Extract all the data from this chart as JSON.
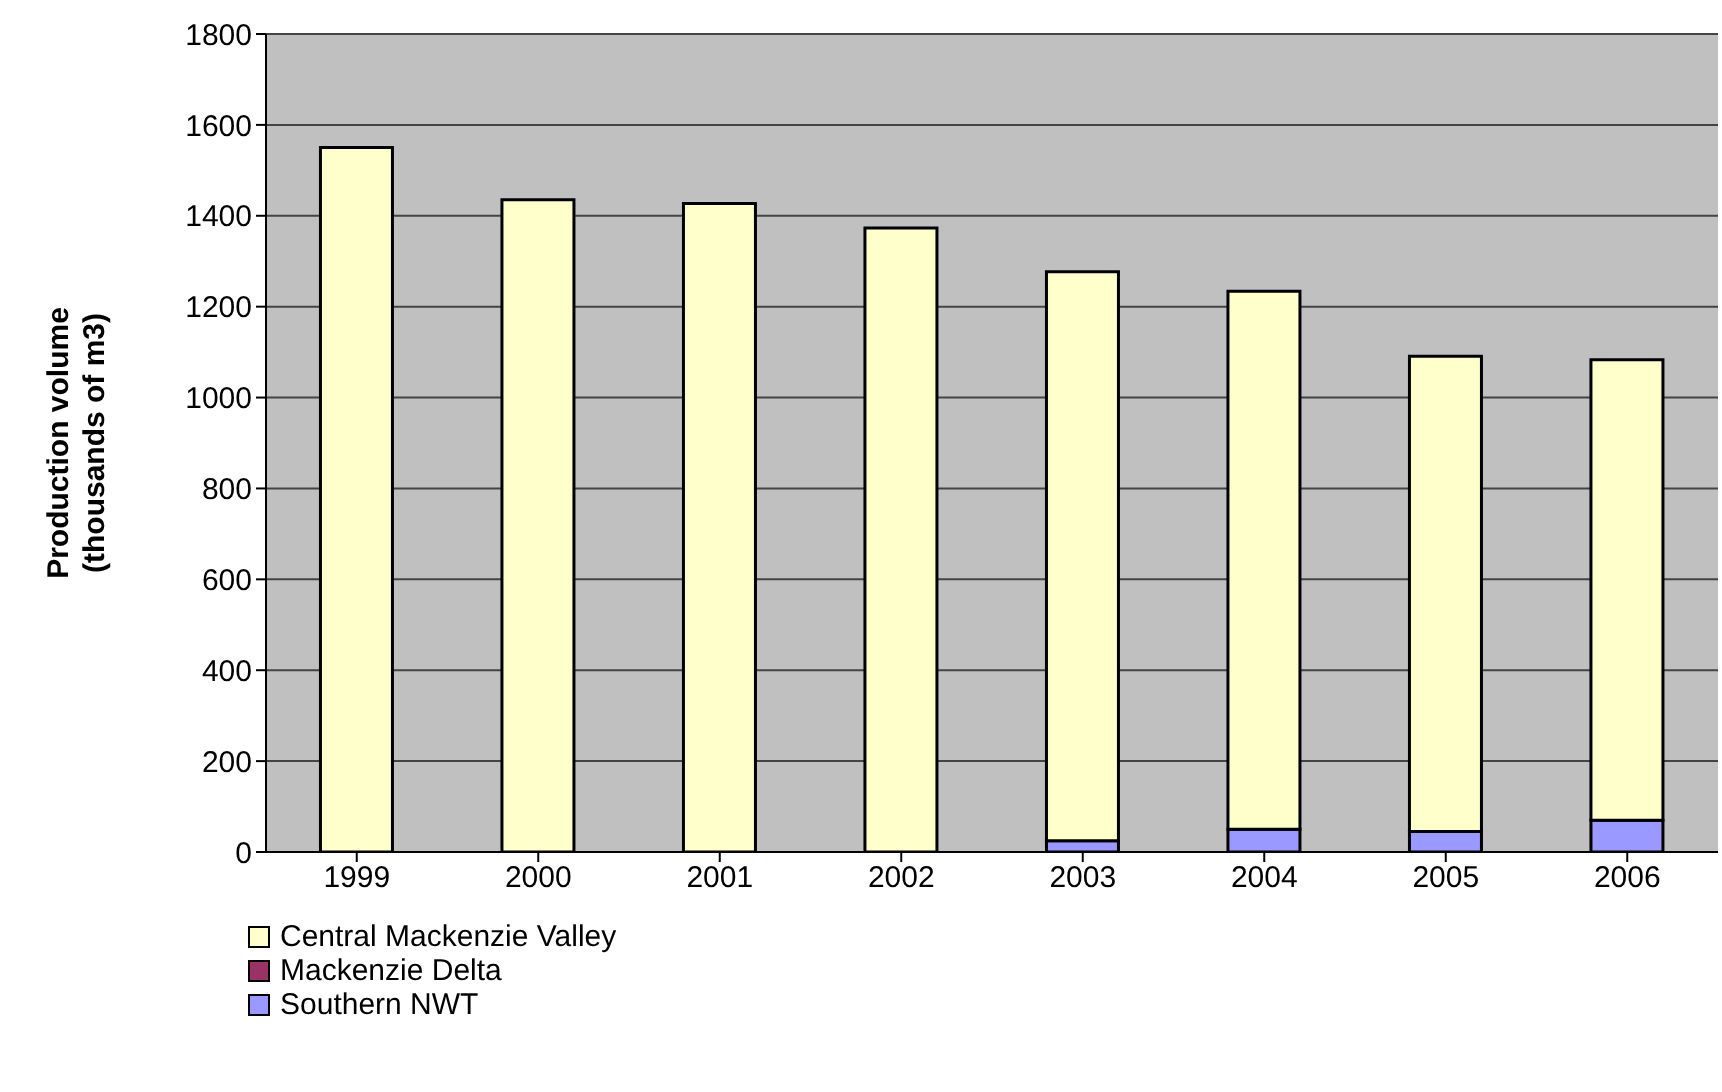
{
  "chart_data": {
    "type": "bar",
    "stacked": true,
    "ylabel": "Production volume\n(thousands of  m3)",
    "categories": [
      "1999",
      "2000",
      "2001",
      "2002",
      "2003",
      "2004",
      "2005",
      "2006"
    ],
    "series": [
      {
        "name": "Southern NWT",
        "color": "#9999ff",
        "values": [
          0,
          0,
          0,
          0,
          25,
          50,
          45,
          70
        ]
      },
      {
        "name": "Mackenzie Delta",
        "color": "#993366",
        "values": [
          0,
          0,
          0,
          0,
          0,
          0,
          0,
          0
        ]
      },
      {
        "name": "Central Mackenzie Valley",
        "color": "#ffffcc",
        "values": [
          1550,
          1435,
          1427,
          1373,
          1252,
          1184,
          1046,
          1013
        ]
      }
    ],
    "ylim": [
      0,
      1800
    ],
    "yticks": [
      0,
      200,
      400,
      600,
      800,
      1000,
      1200,
      1400,
      1600,
      1800
    ],
    "grid": "y",
    "legend": "bottom"
  }
}
